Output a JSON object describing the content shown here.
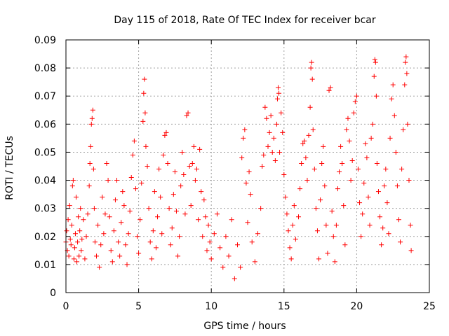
{
  "chart_data": {
    "type": "scatter",
    "title": "Day 115 of 2018, Rate Of TEC Index for receiver bcar",
    "xlabel": "GPS time / hours",
    "ylabel": "ROTI / TECUs",
    "xlim": [
      0,
      25
    ],
    "ylim": [
      0,
      0.09
    ],
    "xticks": [
      0,
      5,
      10,
      15,
      20,
      25
    ],
    "xtick_labels": [
      "0",
      "5",
      "10",
      "15",
      "20",
      "25"
    ],
    "yticks": [
      0,
      0.01,
      0.02,
      0.03,
      0.04,
      0.05,
      0.06,
      0.07,
      0.08,
      0.09
    ],
    "ytick_labels": [
      "0",
      "0.01",
      "0.02",
      "0.03",
      "0.04",
      "0.05",
      "0.06",
      "0.07",
      "0.08",
      "0.09"
    ],
    "grid": true,
    "grid_style": "dotted",
    "marker": "+",
    "color": "#ff0000",
    "series": [
      {
        "points": [
          [
            0.0,
            0.018
          ],
          [
            0.05,
            0.022
          ],
          [
            0.1,
            0.015
          ],
          [
            0.15,
            0.026
          ],
          [
            0.2,
            0.013
          ],
          [
            0.25,
            0.031
          ],
          [
            0.3,
            0.019
          ],
          [
            0.35,
            0.017
          ],
          [
            0.4,
            0.024
          ],
          [
            0.45,
            0.038
          ],
          [
            0.5,
            0.04
          ],
          [
            0.55,
            0.012
          ],
          [
            0.6,
            0.016
          ],
          [
            0.65,
            0.021
          ],
          [
            0.7,
            0.034
          ],
          [
            0.75,
            0.011
          ],
          [
            0.8,
            0.018
          ],
          [
            0.85,
            0.027
          ],
          [
            0.9,
            0.013
          ],
          [
            0.95,
            0.022
          ],
          [
            1.0,
            0.03
          ],
          [
            1.05,
            0.015
          ],
          [
            1.1,
            0.019
          ],
          [
            1.2,
            0.026
          ],
          [
            1.3,
            0.012
          ],
          [
            1.4,
            0.02
          ],
          [
            1.5,
            0.028
          ],
          [
            1.6,
            0.038
          ],
          [
            1.65,
            0.046
          ],
          [
            1.7,
            0.052
          ],
          [
            1.75,
            0.06
          ],
          [
            1.8,
            0.062
          ],
          [
            1.85,
            0.065
          ],
          [
            1.9,
            0.044
          ],
          [
            1.95,
            0.03
          ],
          [
            2.0,
            0.018
          ],
          [
            2.1,
            0.013
          ],
          [
            2.2,
            0.024
          ],
          [
            2.3,
            0.009
          ],
          [
            2.4,
            0.017
          ],
          [
            2.5,
            0.034
          ],
          [
            2.6,
            0.021
          ],
          [
            2.7,
            0.028
          ],
          [
            2.8,
            0.046
          ],
          [
            2.9,
            0.04
          ],
          [
            3.0,
            0.027
          ],
          [
            3.1,
            0.015
          ],
          [
            3.2,
            0.011
          ],
          [
            3.3,
            0.022
          ],
          [
            3.4,
            0.033
          ],
          [
            3.5,
            0.04
          ],
          [
            3.6,
            0.018
          ],
          [
            3.7,
            0.013
          ],
          [
            3.8,
            0.025
          ],
          [
            3.9,
            0.036
          ],
          [
            4.0,
            0.031
          ],
          [
            4.1,
            0.017
          ],
          [
            4.2,
            0.01
          ],
          [
            4.3,
            0.021
          ],
          [
            4.4,
            0.029
          ],
          [
            4.5,
            0.041
          ],
          [
            4.6,
            0.049
          ],
          [
            4.7,
            0.054
          ],
          [
            4.8,
            0.037
          ],
          [
            4.9,
            0.02
          ],
          [
            5.0,
            0.014
          ],
          [
            5.1,
            0.026
          ],
          [
            5.2,
            0.039
          ],
          [
            5.3,
            0.061
          ],
          [
            5.35,
            0.071
          ],
          [
            5.4,
            0.076
          ],
          [
            5.45,
            0.064
          ],
          [
            5.5,
            0.052
          ],
          [
            5.6,
            0.045
          ],
          [
            5.7,
            0.03
          ],
          [
            5.8,
            0.018
          ],
          [
            5.9,
            0.012
          ],
          [
            6.0,
            0.022
          ],
          [
            6.1,
            0.036
          ],
          [
            6.2,
            0.016
          ],
          [
            6.3,
            0.027
          ],
          [
            6.4,
            0.044
          ],
          [
            6.5,
            0.034
          ],
          [
            6.6,
            0.021
          ],
          [
            6.7,
            0.049
          ],
          [
            6.8,
            0.056
          ],
          [
            6.9,
            0.057
          ],
          [
            7.0,
            0.046
          ],
          [
            7.1,
            0.03
          ],
          [
            7.2,
            0.017
          ],
          [
            7.3,
            0.023
          ],
          [
            7.4,
            0.035
          ],
          [
            7.5,
            0.043
          ],
          [
            7.6,
            0.029
          ],
          [
            7.7,
            0.013
          ],
          [
            7.8,
            0.02
          ],
          [
            7.9,
            0.038
          ],
          [
            8.0,
            0.05
          ],
          [
            8.1,
            0.042
          ],
          [
            8.2,
            0.028
          ],
          [
            8.3,
            0.063
          ],
          [
            8.4,
            0.064
          ],
          [
            8.5,
            0.045
          ],
          [
            8.6,
            0.031
          ],
          [
            8.7,
            0.046
          ],
          [
            8.8,
            0.052
          ],
          [
            8.9,
            0.04
          ],
          [
            9.0,
            0.044
          ],
          [
            9.1,
            0.026
          ],
          [
            9.2,
            0.051
          ],
          [
            9.3,
            0.036
          ],
          [
            9.4,
            0.02
          ],
          [
            9.5,
            0.033
          ],
          [
            9.6,
            0.027
          ],
          [
            9.7,
            0.015
          ],
          [
            9.8,
            0.024
          ],
          [
            9.9,
            0.018
          ],
          [
            10.0,
            0.012
          ],
          [
            10.2,
            0.021
          ],
          [
            10.4,
            0.028
          ],
          [
            10.6,
            0.016
          ],
          [
            10.8,
            0.009
          ],
          [
            11.0,
            0.02
          ],
          [
            11.2,
            0.013
          ],
          [
            11.4,
            0.026
          ],
          [
            11.6,
            0.005
          ],
          [
            11.8,
            0.017
          ],
          [
            12.0,
            0.009
          ],
          [
            12.1,
            0.048
          ],
          [
            12.2,
            0.055
          ],
          [
            12.3,
            0.058
          ],
          [
            12.4,
            0.039
          ],
          [
            12.5,
            0.025
          ],
          [
            12.6,
            0.043
          ],
          [
            12.7,
            0.035
          ],
          [
            12.8,
            0.018
          ],
          [
            13.0,
            0.011
          ],
          [
            13.2,
            0.021
          ],
          [
            13.4,
            0.03
          ],
          [
            13.5,
            0.045
          ],
          [
            13.6,
            0.049
          ],
          [
            13.7,
            0.066
          ],
          [
            13.8,
            0.062
          ],
          [
            13.9,
            0.052
          ],
          [
            14.0,
            0.057
          ],
          [
            14.1,
            0.063
          ],
          [
            14.2,
            0.05
          ],
          [
            14.3,
            0.055
          ],
          [
            14.4,
            0.047
          ],
          [
            14.5,
            0.06
          ],
          [
            14.55,
            0.069
          ],
          [
            14.6,
            0.073
          ],
          [
            14.65,
            0.071
          ],
          [
            14.7,
            0.05
          ],
          [
            14.8,
            0.064
          ],
          [
            14.9,
            0.057
          ],
          [
            15.0,
            0.042
          ],
          [
            15.1,
            0.034
          ],
          [
            15.2,
            0.028
          ],
          [
            15.3,
            0.022
          ],
          [
            15.4,
            0.016
          ],
          [
            15.5,
            0.012
          ],
          [
            15.6,
            0.024
          ],
          [
            15.7,
            0.031
          ],
          [
            15.8,
            0.019
          ],
          [
            16.0,
            0.027
          ],
          [
            16.1,
            0.037
          ],
          [
            16.2,
            0.046
          ],
          [
            16.3,
            0.053
          ],
          [
            16.4,
            0.054
          ],
          [
            16.5,
            0.048
          ],
          [
            16.6,
            0.04
          ],
          [
            16.7,
            0.056
          ],
          [
            16.8,
            0.066
          ],
          [
            16.85,
            0.08
          ],
          [
            16.9,
            0.082
          ],
          [
            16.95,
            0.076
          ],
          [
            17.0,
            0.058
          ],
          [
            17.1,
            0.044
          ],
          [
            17.2,
            0.03
          ],
          [
            17.3,
            0.022
          ],
          [
            17.4,
            0.012
          ],
          [
            17.5,
            0.033
          ],
          [
            17.6,
            0.046
          ],
          [
            17.7,
            0.052
          ],
          [
            17.8,
            0.038
          ],
          [
            17.9,
            0.024
          ],
          [
            18.0,
            0.014
          ],
          [
            18.1,
            0.072
          ],
          [
            18.2,
            0.073
          ],
          [
            18.3,
            0.029
          ],
          [
            18.4,
            0.02
          ],
          [
            18.5,
            0.011
          ],
          [
            18.6,
            0.024
          ],
          [
            18.7,
            0.037
          ],
          [
            18.8,
            0.043
          ],
          [
            18.9,
            0.052
          ],
          [
            19.0,
            0.046
          ],
          [
            19.1,
            0.031
          ],
          [
            19.2,
            0.017
          ],
          [
            19.3,
            0.058
          ],
          [
            19.4,
            0.062
          ],
          [
            19.5,
            0.054
          ],
          [
            19.6,
            0.04
          ],
          [
            19.7,
            0.047
          ],
          [
            19.8,
            0.064
          ],
          [
            19.9,
            0.068
          ],
          [
            20.0,
            0.07
          ],
          [
            20.1,
            0.044
          ],
          [
            20.2,
            0.032
          ],
          [
            20.3,
            0.02
          ],
          [
            20.4,
            0.028
          ],
          [
            20.5,
            0.039
          ],
          [
            20.6,
            0.053
          ],
          [
            20.7,
            0.048
          ],
          [
            20.8,
            0.034
          ],
          [
            20.9,
            0.024
          ],
          [
            21.0,
            0.055
          ],
          [
            21.1,
            0.06
          ],
          [
            21.2,
            0.077
          ],
          [
            21.25,
            0.083
          ],
          [
            21.3,
            0.082
          ],
          [
            21.35,
            0.07
          ],
          [
            21.4,
            0.046
          ],
          [
            21.5,
            0.036
          ],
          [
            21.6,
            0.027
          ],
          [
            21.7,
            0.017
          ],
          [
            21.8,
            0.023
          ],
          [
            21.9,
            0.038
          ],
          [
            22.0,
            0.044
          ],
          [
            22.1,
            0.032
          ],
          [
            22.2,
            0.021
          ],
          [
            22.3,
            0.055
          ],
          [
            22.4,
            0.069
          ],
          [
            22.5,
            0.074
          ],
          [
            22.6,
            0.063
          ],
          [
            22.7,
            0.05
          ],
          [
            22.8,
            0.038
          ],
          [
            22.9,
            0.026
          ],
          [
            23.0,
            0.018
          ],
          [
            23.1,
            0.044
          ],
          [
            23.2,
            0.058
          ],
          [
            23.3,
            0.074
          ],
          [
            23.35,
            0.082
          ],
          [
            23.4,
            0.084
          ],
          [
            23.45,
            0.078
          ],
          [
            23.5,
            0.06
          ],
          [
            23.6,
            0.04
          ],
          [
            23.7,
            0.024
          ],
          [
            23.75,
            0.015
          ]
        ]
      }
    ]
  }
}
